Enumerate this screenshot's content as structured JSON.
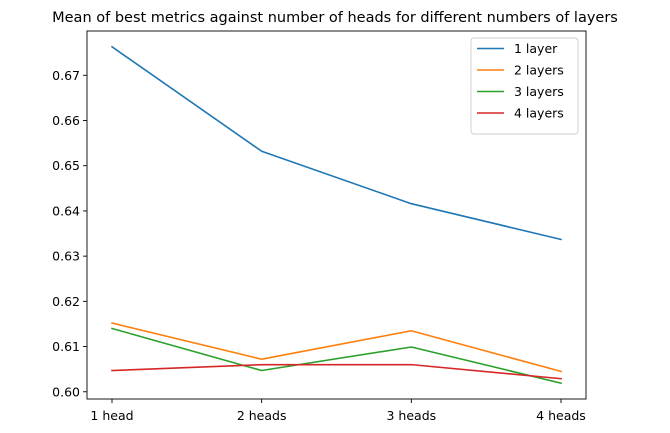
{
  "chart_data": {
    "type": "line",
    "title": "Mean of best metrics against number of heads for different numbers of layers",
    "xlabel": "",
    "ylabel": "",
    "categories": [
      "1 head",
      "2 heads",
      "3 heads",
      "4 heads"
    ],
    "ylim": [
      0.5984,
      0.6798
    ],
    "yticks": [
      0.6,
      0.61,
      0.62,
      0.63,
      0.64,
      0.65,
      0.66,
      0.67
    ],
    "ytick_labels": [
      "0.60",
      "0.61",
      "0.62",
      "0.63",
      "0.64",
      "0.65",
      "0.66",
      "0.67"
    ],
    "grid": false,
    "legend_position": "top-right",
    "series": [
      {
        "name": "1 layer",
        "color": "#1f77b4",
        "values": [
          0.6763,
          0.6532,
          0.6416,
          0.6337
        ]
      },
      {
        "name": "2 layers",
        "color": "#ff7f0e",
        "values": [
          0.6152,
          0.6072,
          0.6135,
          0.6045
        ]
      },
      {
        "name": "3 layers",
        "color": "#2ca02c",
        "values": [
          0.614,
          0.6047,
          0.6099,
          0.6019
        ]
      },
      {
        "name": "4 layers",
        "color": "#d62728",
        "values": [
          0.6047,
          0.606,
          0.606,
          0.6029
        ]
      }
    ]
  }
}
